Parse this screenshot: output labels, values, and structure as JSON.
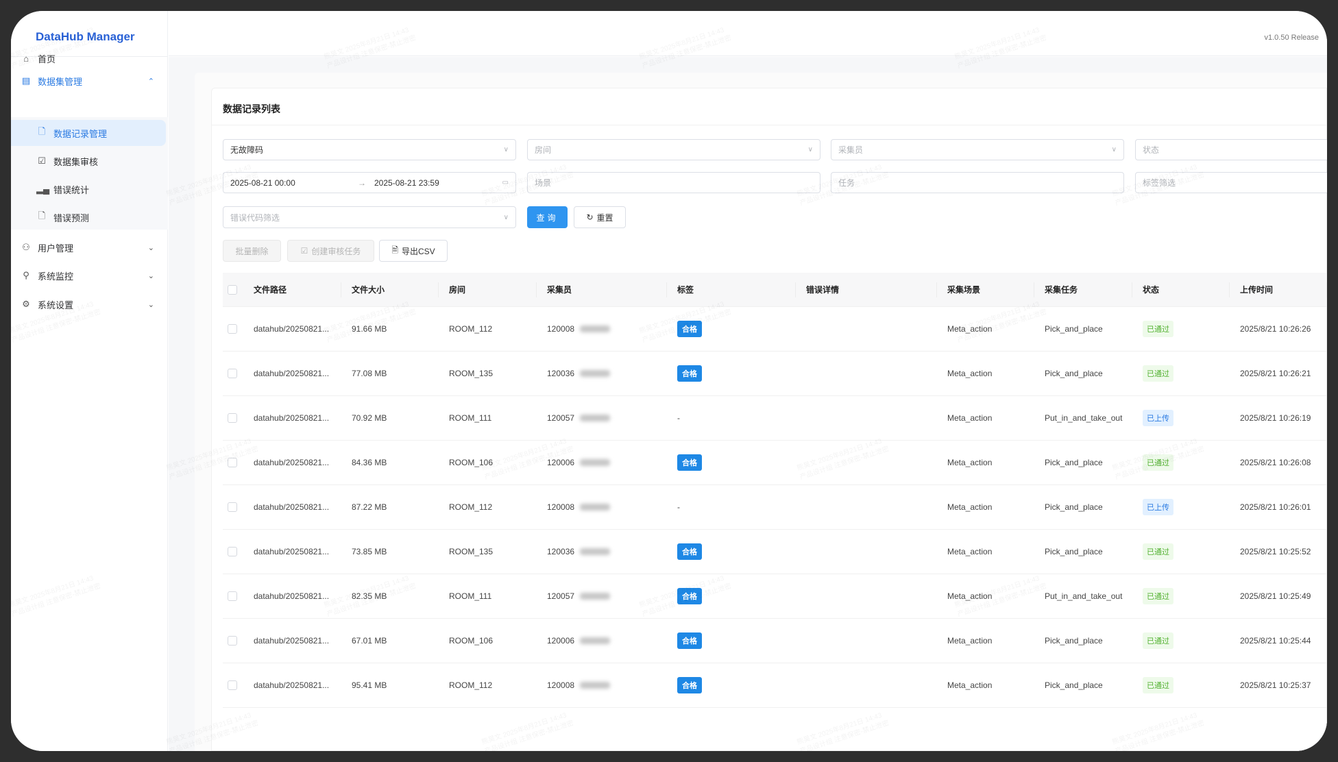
{
  "app": {
    "title": "DataHub Manager",
    "version": "v1.0.50 Release"
  },
  "sidebar": {
    "items": [
      {
        "label": "首页",
        "icon": "home-icon"
      },
      {
        "label": "数据集管理",
        "icon": "dataset-icon",
        "expanded": true,
        "children": [
          {
            "label": "数据记录管理",
            "icon": "file-icon",
            "active": true
          },
          {
            "label": "数据集审核",
            "icon": "review-icon"
          },
          {
            "label": "错误统计",
            "icon": "bar-chart-icon"
          },
          {
            "label": "错误预测",
            "icon": "file-icon"
          }
        ]
      },
      {
        "label": "用户管理",
        "icon": "users-icon"
      },
      {
        "label": "系统监控",
        "icon": "monitor-icon"
      },
      {
        "label": "系统设置",
        "icon": "gear-icon"
      }
    ]
  },
  "page": {
    "title": "数据记录列表"
  },
  "filters": {
    "error_code_mode": "无故障码",
    "room_placeholder": "房间",
    "collector_placeholder": "采集员",
    "status_placeholder": "状态",
    "date_start": "2025-08-21 00:00",
    "date_separator": "→",
    "date_end": "2025-08-21 23:59",
    "scene_placeholder": "场景",
    "task_placeholder": "任务",
    "tag_placeholder": "标签筛选",
    "error_code_placeholder": "错误代码筛选",
    "query_label": "查询",
    "reset_label": "重置"
  },
  "actions": {
    "batch_delete": "批量删除",
    "create_review": "创建审核任务",
    "export_csv": "导出CSV"
  },
  "table": {
    "columns": [
      "文件路径",
      "文件大小",
      "房间",
      "采集员",
      "标签",
      "错误详情",
      "采集场景",
      "采集任务",
      "状态",
      "上传时间"
    ],
    "rows": [
      {
        "path": "datahub/20250821...",
        "size": "91.66 MB",
        "room": "ROOM_112",
        "collector": "120008",
        "tag": "合格",
        "error": "",
        "scene": "Meta_action",
        "task": "Pick_and_place",
        "status": "已通过",
        "status_type": "pass",
        "time": "2025/8/21 10:26:26"
      },
      {
        "path": "datahub/20250821...",
        "size": "77.08 MB",
        "room": "ROOM_135",
        "collector": "120036",
        "tag": "合格",
        "error": "",
        "scene": "Meta_action",
        "task": "Pick_and_place",
        "status": "已通过",
        "status_type": "pass",
        "time": "2025/8/21 10:26:21"
      },
      {
        "path": "datahub/20250821...",
        "size": "70.92 MB",
        "room": "ROOM_111",
        "collector": "120057",
        "tag": "-",
        "error": "",
        "scene": "Meta_action",
        "task": "Put_in_and_take_out",
        "status": "已上传",
        "status_type": "up",
        "time": "2025/8/21 10:26:19"
      },
      {
        "path": "datahub/20250821...",
        "size": "84.36 MB",
        "room": "ROOM_106",
        "collector": "120006",
        "tag": "合格",
        "error": "",
        "scene": "Meta_action",
        "task": "Pick_and_place",
        "status": "已通过",
        "status_type": "pass",
        "time": "2025/8/21 10:26:08"
      },
      {
        "path": "datahub/20250821...",
        "size": "87.22 MB",
        "room": "ROOM_112",
        "collector": "120008",
        "tag": "-",
        "error": "",
        "scene": "Meta_action",
        "task": "Pick_and_place",
        "status": "已上传",
        "status_type": "up",
        "time": "2025/8/21 10:26:01"
      },
      {
        "path": "datahub/20250821...",
        "size": "73.85 MB",
        "room": "ROOM_135",
        "collector": "120036",
        "tag": "合格",
        "error": "",
        "scene": "Meta_action",
        "task": "Pick_and_place",
        "status": "已通过",
        "status_type": "pass",
        "time": "2025/8/21 10:25:52"
      },
      {
        "path": "datahub/20250821...",
        "size": "82.35 MB",
        "room": "ROOM_111",
        "collector": "120057",
        "tag": "合格",
        "error": "",
        "scene": "Meta_action",
        "task": "Put_in_and_take_out",
        "status": "已通过",
        "status_type": "pass",
        "time": "2025/8/21 10:25:49"
      },
      {
        "path": "datahub/20250821...",
        "size": "67.01 MB",
        "room": "ROOM_106",
        "collector": "120006",
        "tag": "合格",
        "error": "",
        "scene": "Meta_action",
        "task": "Pick_and_place",
        "status": "已通过",
        "status_type": "pass",
        "time": "2025/8/21 10:25:44"
      },
      {
        "path": "datahub/20250821...",
        "size": "95.41 MB",
        "room": "ROOM_112",
        "collector": "120008",
        "tag": "合格",
        "error": "",
        "scene": "Meta_action",
        "task": "Pick_and_place",
        "status": "已通过",
        "status_type": "pass",
        "time": "2025/8/21 10:25:37"
      }
    ]
  },
  "watermark": {
    "line1": "熊昊文 2025年8月21日 14:43",
    "line2": "产品设计组 注意保密-禁止泄密"
  },
  "colors": {
    "brand": "#2a62d6",
    "primary": "#2f95f0",
    "tag": "#1e88e5",
    "pass": "#52b130",
    "uploaded": "#2a7ae2"
  }
}
